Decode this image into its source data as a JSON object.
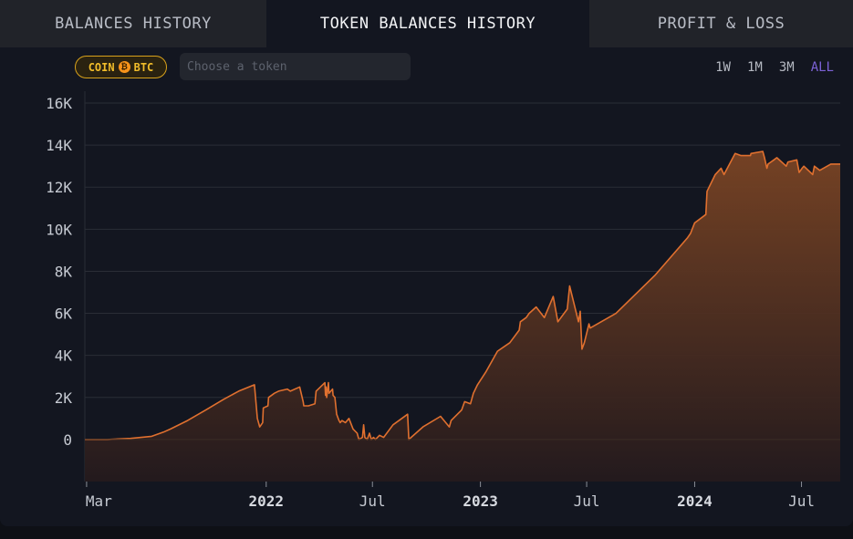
{
  "tabs": [
    {
      "label": "BALANCES HISTORY",
      "active": false
    },
    {
      "label": "TOKEN BALANCES HISTORY",
      "active": true
    },
    {
      "label": "PROFIT & LOSS",
      "active": false
    }
  ],
  "token_badge": {
    "prefix": "COIN",
    "coin_symbol": "₿",
    "label": "BTC",
    "color": "#f2bd2a"
  },
  "token_search": {
    "placeholder": "Choose a token",
    "value": ""
  },
  "ranges": [
    {
      "label": "1W",
      "active": false
    },
    {
      "label": "1M",
      "active": false
    },
    {
      "label": "3M",
      "active": false
    },
    {
      "label": "ALL",
      "active": true
    }
  ],
  "colors": {
    "line": "#e0702f",
    "area_top": "#7a4424",
    "area_bottom": "#241a1d",
    "accent": "#7c62d6"
  },
  "chart_data": {
    "type": "area",
    "title": "",
    "xlabel": "",
    "ylabel": "",
    "ylim": [
      -2000,
      16000
    ],
    "yticks": [
      0,
      2000,
      4000,
      6000,
      8000,
      10000,
      12000,
      14000,
      16000
    ],
    "ytick_labels": [
      "0",
      "2K",
      "4K",
      "6K",
      "8K",
      "10K",
      "12K",
      "14K",
      "16K"
    ],
    "xlim": [
      "2021-02-26",
      "2024-09-05"
    ],
    "xticks": [
      {
        "date": "2021-03-01",
        "label": "Mar",
        "year": false
      },
      {
        "date": "2022-01-01",
        "label": "2022",
        "year": true
      },
      {
        "date": "2022-07-01",
        "label": "Jul",
        "year": false
      },
      {
        "date": "2023-01-01",
        "label": "2023",
        "year": true
      },
      {
        "date": "2023-07-01",
        "label": "Jul",
        "year": false
      },
      {
        "date": "2024-01-01",
        "label": "2024",
        "year": true
      },
      {
        "date": "2024-07-01",
        "label": "Jul",
        "year": false
      }
    ],
    "grid": true,
    "series": [
      {
        "x": [
          "2021-02-26",
          "2021-04-05",
          "2021-05-15",
          "2021-06-20",
          "2021-07-10",
          "2021-07-22",
          "2021-08-20",
          "2021-09-20",
          "2021-10-20",
          "2021-11-15",
          "2021-12-12",
          "2021-12-17",
          "2021-12-21",
          "2021-12-26",
          "2021-12-27",
          "2022-01-04",
          "2022-01-05",
          "2022-01-15",
          "2022-01-22",
          "2022-02-06",
          "2022-02-11",
          "2022-02-27",
          "2022-03-05",
          "2022-03-06",
          "2022-03-14",
          "2022-03-25",
          "2022-03-27",
          "2022-04-11",
          "2022-04-12",
          "2022-04-13",
          "2022-04-14",
          "2022-04-17",
          "2022-04-18",
          "2022-04-21",
          "2022-04-24",
          "2022-04-25",
          "2022-04-28",
          "2022-05-01",
          "2022-05-05",
          "2022-05-07",
          "2022-05-10",
          "2022-05-16",
          "2022-05-22",
          "2022-05-29",
          "2022-06-05",
          "2022-06-08",
          "2022-06-14",
          "2022-06-16",
          "2022-06-18",
          "2022-06-22",
          "2022-06-26",
          "2022-06-29",
          "2022-07-03",
          "2022-07-06",
          "2022-07-13",
          "2022-07-20",
          "2022-08-05",
          "2022-08-30",
          "2022-09-01",
          "2022-09-25",
          "2022-10-25",
          "2022-11-09",
          "2022-11-12",
          "2022-11-30",
          "2022-12-05",
          "2022-12-15",
          "2022-12-20",
          "2022-12-27",
          "2023-01-10",
          "2023-01-30",
          "2023-02-20",
          "2023-03-08",
          "2023-03-10",
          "2023-03-20",
          "2023-03-25",
          "2023-04-06",
          "2023-04-20",
          "2023-05-05",
          "2023-05-13",
          "2023-05-29",
          "2023-06-02",
          "2023-06-17",
          "2023-06-20",
          "2023-06-23",
          "2023-06-27",
          "2023-07-05",
          "2023-07-07",
          "2023-08-20",
          "2023-10-25",
          "2023-12-20",
          "2023-12-25",
          "2024-01-01",
          "2024-01-20",
          "2024-01-22",
          "2024-02-05",
          "2024-02-15",
          "2024-02-20",
          "2024-03-10",
          "2024-03-20",
          "2024-04-05",
          "2024-04-06",
          "2024-04-26",
          "2024-04-29",
          "2024-05-03",
          "2024-05-05",
          "2024-05-15",
          "2024-05-20",
          "2024-06-05",
          "2024-06-08",
          "2024-06-23",
          "2024-06-27",
          "2024-07-02",
          "2024-07-05",
          "2024-07-20",
          "2024-07-23",
          "2024-08-01",
          "2024-08-20",
          "2024-09-05"
        ],
        "y": [
          0,
          0,
          50,
          150,
          350,
          500,
          900,
          1400,
          1900,
          2300,
          2600,
          1000,
          600,
          800,
          1500,
          1600,
          2000,
          2200,
          2300,
          2400,
          2300,
          2500,
          1800,
          1600,
          1600,
          1700,
          2300,
          2700,
          2100,
          2500,
          2000,
          2700,
          2200,
          2300,
          2400,
          2100,
          2000,
          1200,
          900,
          800,
          900,
          800,
          1000,
          500,
          300,
          0,
          100,
          700,
          100,
          0,
          300,
          0,
          100,
          0,
          200,
          100,
          700,
          1200,
          0,
          600,
          1100,
          600,
          900,
          1400,
          1800,
          1700,
          2200,
          2600,
          3200,
          4200,
          4600,
          5200,
          5600,
          5800,
          6000,
          6300,
          5800,
          6800,
          5600,
          6200,
          7300,
          5600,
          6100,
          4300,
          4600,
          5500,
          5300,
          6000,
          7800,
          9600,
          9800,
          10300,
          10700,
          11800,
          12600,
          12900,
          12600,
          13600,
          13500,
          13500,
          13600,
          13700,
          13400,
          12900,
          13100,
          13300,
          13400,
          13000,
          13200,
          13300,
          12700,
          12900,
          13000,
          12600,
          13000,
          12800,
          13100,
          13100
        ]
      }
    ]
  }
}
